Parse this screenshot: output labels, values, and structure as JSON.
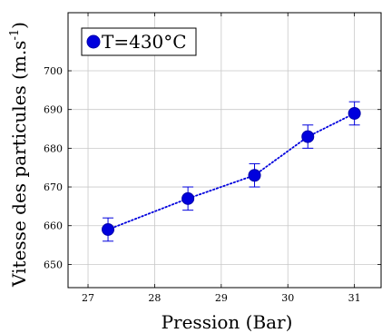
{
  "chart_data": {
    "type": "line",
    "title": "",
    "xlabel": "Pression (Bar)",
    "ylabel_main": "Vitesse des particules (m.s",
    "ylabel_sup": "-1",
    "ylabel_close": ")",
    "xlim": [
      26.7,
      31.4
    ],
    "ylim": [
      644,
      715
    ],
    "xticks": [
      27,
      28,
      29,
      30,
      31
    ],
    "yticks": [
      650,
      660,
      670,
      680,
      690,
      700
    ],
    "grid": true,
    "legend_position": "top-left",
    "series": [
      {
        "name": "T=430°C",
        "color": "#0000dd",
        "line_style": "dotted",
        "x": [
          27.3,
          28.5,
          29.5,
          30.3,
          31.0
        ],
        "y": [
          659,
          667,
          673,
          683,
          689
        ],
        "error": [
          3,
          3,
          3,
          3,
          3
        ]
      }
    ]
  }
}
